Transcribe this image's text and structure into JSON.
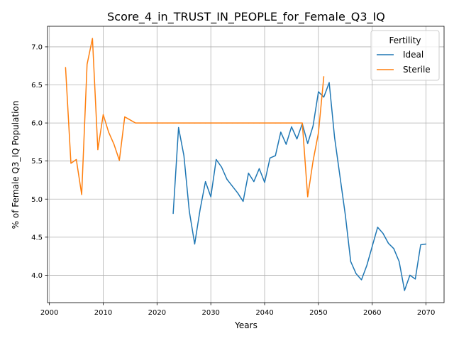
{
  "chart_data": {
    "type": "line",
    "title": "Score_4_in_TRUST_IN_PEOPLE_for_Female_Q3_IQ",
    "xlabel": "Years",
    "ylabel": "% of Female Q3_IQ Population",
    "xlim": [
      1999.65,
      2073.35
    ],
    "ylim": [
      3.64,
      7.27
    ],
    "xticks": [
      2000,
      2010,
      2020,
      2030,
      2040,
      2050,
      2060,
      2070
    ],
    "yticks": [
      4.0,
      4.5,
      5.0,
      5.5,
      6.0,
      6.5,
      7.0
    ],
    "xtick_labels": [
      "2000",
      "2010",
      "2020",
      "2030",
      "2040",
      "2050",
      "2060",
      "2070"
    ],
    "ytick_labels": [
      "4.0",
      "4.5",
      "5.0",
      "5.5",
      "6.0",
      "6.5",
      "7.0"
    ],
    "grid": true,
    "legend": {
      "title": "Fertility",
      "placement": "top-right"
    },
    "series": [
      {
        "name": "Ideal",
        "color": "#1f77b4",
        "x": [
          2023,
          2024,
          2025,
          2026,
          2027,
          2028,
          2029,
          2030,
          2031,
          2032,
          2033,
          2034,
          2035,
          2036,
          2037,
          2038,
          2039,
          2040,
          2041,
          2042,
          2043,
          2044,
          2045,
          2046,
          2047,
          2048,
          2049,
          2050,
          2051,
          2052,
          2053,
          2054,
          2055,
          2056,
          2057,
          2058,
          2059,
          2060,
          2061,
          2062,
          2063,
          2064,
          2065,
          2066,
          2067,
          2068,
          2069,
          2070
        ],
        "y": [
          4.81,
          5.94,
          5.57,
          4.84,
          4.41,
          4.86,
          5.23,
          5.03,
          5.52,
          5.42,
          5.26,
          5.17,
          5.08,
          4.97,
          5.34,
          5.23,
          5.4,
          5.22,
          5.54,
          5.57,
          5.88,
          5.72,
          5.95,
          5.79,
          5.99,
          5.73,
          5.96,
          6.41,
          6.34,
          6.53,
          5.81,
          5.3,
          4.79,
          4.18,
          4.02,
          3.94,
          4.13,
          4.38,
          4.63,
          4.55,
          4.42,
          4.35,
          4.18,
          3.8,
          4.0,
          3.95,
          4.4,
          4.41
        ]
      },
      {
        "name": "Sterile",
        "color": "#ff7f0e",
        "x": [
          2003,
          2004,
          2005,
          2006,
          2007,
          2008,
          2009,
          2010,
          2011,
          2012,
          2013,
          2014,
          2015,
          2016,
          2017,
          2018,
          2019,
          2020,
          2021,
          2022,
          2023,
          2024,
          2025,
          2026,
          2027,
          2028,
          2029,
          2030,
          2031,
          2032,
          2033,
          2034,
          2035,
          2036,
          2037,
          2038,
          2039,
          2040,
          2041,
          2042,
          2043,
          2044,
          2045,
          2046,
          2047,
          2048,
          2049,
          2050,
          2051
        ],
        "y": [
          6.73,
          5.47,
          5.52,
          5.06,
          6.77,
          7.11,
          5.65,
          6.11,
          5.88,
          5.72,
          5.51,
          6.08,
          6.04,
          6.0,
          6.0,
          6.0,
          6.0,
          6.0,
          6.0,
          6.0,
          6.0,
          6.0,
          6.0,
          6.0,
          6.0,
          6.0,
          6.0,
          6.0,
          6.0,
          6.0,
          6.0,
          6.0,
          6.0,
          6.0,
          6.0,
          6.0,
          6.0,
          6.0,
          6.0,
          6.0,
          6.0,
          6.0,
          6.0,
          6.0,
          6.0,
          5.03,
          5.5,
          5.87,
          6.61
        ]
      }
    ]
  }
}
